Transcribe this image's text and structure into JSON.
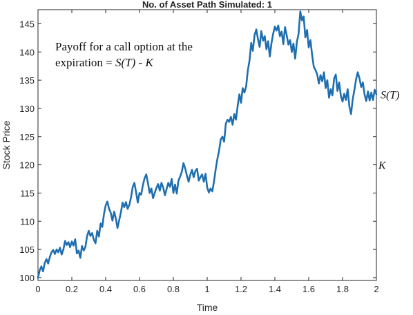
{
  "chart_data": {
    "type": "line",
    "title": "No. of Asset Path Simulated: 1",
    "xlabel": "Time",
    "ylabel": "Stock Price",
    "xlim": [
      0,
      2
    ],
    "ylim": [
      99.5,
      147.5
    ],
    "xticks": [
      "0",
      "0.2",
      "0.4",
      "0.6",
      "0.8",
      "1",
      "1.2",
      "1.4",
      "1.6",
      "1.8",
      "2"
    ],
    "yticks": [
      "100",
      "105",
      "110",
      "115",
      "120",
      "125",
      "130",
      "135",
      "140",
      "145"
    ],
    "grid": false,
    "line_color": "#1f6fb0",
    "annotation_line1": "Payoff for a call option at the",
    "annotation_line2_prefix": "expiration = ",
    "annotation_line2_formula": "S(T) - K",
    "right_labels": {
      "ST": "S(T)",
      "K": "K"
    },
    "path": [
      [
        0.0,
        100.0
      ],
      [
        0.01,
        101.3
      ],
      [
        0.02,
        102.0
      ],
      [
        0.03,
        101.1
      ],
      [
        0.04,
        102.6
      ],
      [
        0.05,
        103.3
      ],
      [
        0.06,
        102.5
      ],
      [
        0.07,
        103.7
      ],
      [
        0.08,
        104.5
      ],
      [
        0.09,
        104.9
      ],
      [
        0.1,
        104.2
      ],
      [
        0.11,
        105.0
      ],
      [
        0.12,
        104.5
      ],
      [
        0.13,
        105.3
      ],
      [
        0.14,
        104.1
      ],
      [
        0.15,
        105.0
      ],
      [
        0.16,
        106.5
      ],
      [
        0.17,
        105.8
      ],
      [
        0.18,
        106.3
      ],
      [
        0.19,
        105.4
      ],
      [
        0.2,
        106.4
      ],
      [
        0.21,
        105.7
      ],
      [
        0.22,
        106.8
      ],
      [
        0.23,
        104.3
      ],
      [
        0.24,
        104.8
      ],
      [
        0.25,
        103.5
      ],
      [
        0.26,
        105.6
      ],
      [
        0.27,
        104.8
      ],
      [
        0.28,
        105.4
      ],
      [
        0.29,
        107.3
      ],
      [
        0.3,
        108.3
      ],
      [
        0.31,
        107.4
      ],
      [
        0.32,
        107.9
      ],
      [
        0.33,
        106.7
      ],
      [
        0.34,
        106.1
      ],
      [
        0.35,
        108.3
      ],
      [
        0.36,
        107.3
      ],
      [
        0.37,
        109.6
      ],
      [
        0.38,
        109.0
      ],
      [
        0.39,
        111.3
      ],
      [
        0.4,
        112.8
      ],
      [
        0.41,
        113.5
      ],
      [
        0.42,
        112.2
      ],
      [
        0.43,
        111.5
      ],
      [
        0.44,
        110.1
      ],
      [
        0.45,
        111.7
      ],
      [
        0.46,
        110.5
      ],
      [
        0.47,
        108.8
      ],
      [
        0.48,
        110.2
      ],
      [
        0.49,
        111.6
      ],
      [
        0.5,
        113.3
      ],
      [
        0.51,
        112.5
      ],
      [
        0.52,
        113.4
      ],
      [
        0.53,
        112.2
      ],
      [
        0.54,
        112.9
      ],
      [
        0.55,
        114.3
      ],
      [
        0.56,
        116.1
      ],
      [
        0.57,
        116.8
      ],
      [
        0.58,
        115.1
      ],
      [
        0.59,
        113.3
      ],
      [
        0.6,
        115.0
      ],
      [
        0.61,
        114.7
      ],
      [
        0.62,
        116.4
      ],
      [
        0.63,
        117.6
      ],
      [
        0.64,
        118.3
      ],
      [
        0.65,
        116.7
      ],
      [
        0.66,
        115.0
      ],
      [
        0.67,
        115.8
      ],
      [
        0.68,
        114.1
      ],
      [
        0.69,
        115.0
      ],
      [
        0.7,
        115.9
      ],
      [
        0.71,
        116.6
      ],
      [
        0.72,
        115.4
      ],
      [
        0.73,
        116.8
      ],
      [
        0.74,
        116.0
      ],
      [
        0.75,
        114.6
      ],
      [
        0.76,
        115.7
      ],
      [
        0.77,
        116.8
      ],
      [
        0.78,
        116.1
      ],
      [
        0.79,
        117.5
      ],
      [
        0.8,
        115.0
      ],
      [
        0.81,
        116.5
      ],
      [
        0.82,
        114.9
      ],
      [
        0.83,
        117.2
      ],
      [
        0.84,
        117.9
      ],
      [
        0.85,
        118.8
      ],
      [
        0.86,
        120.3
      ],
      [
        0.87,
        119.4
      ],
      [
        0.88,
        118.1
      ],
      [
        0.89,
        117.0
      ],
      [
        0.9,
        118.2
      ],
      [
        0.91,
        119.1
      ],
      [
        0.92,
        117.8
      ],
      [
        0.93,
        118.9
      ],
      [
        0.94,
        119.3
      ],
      [
        0.95,
        117.2
      ],
      [
        0.96,
        117.8
      ],
      [
        0.97,
        118.3
      ],
      [
        0.98,
        117.0
      ],
      [
        0.99,
        118.4
      ],
      [
        1.0,
        116.0
      ],
      [
        1.01,
        115.1
      ],
      [
        1.02,
        115.8
      ],
      [
        1.03,
        115.3
      ],
      [
        1.04,
        117.0
      ],
      [
        1.05,
        119.2
      ],
      [
        1.06,
        121.0
      ],
      [
        1.07,
        122.5
      ],
      [
        1.08,
        124.5
      ],
      [
        1.09,
        125.0
      ],
      [
        1.1,
        124.1
      ],
      [
        1.11,
        127.3
      ],
      [
        1.12,
        128.0
      ],
      [
        1.13,
        127.6
      ],
      [
        1.14,
        128.5
      ],
      [
        1.15,
        127.1
      ],
      [
        1.16,
        129.0
      ],
      [
        1.17,
        128.0
      ],
      [
        1.18,
        130.4
      ],
      [
        1.19,
        132.5
      ],
      [
        1.2,
        131.0
      ],
      [
        1.21,
        133.6
      ],
      [
        1.22,
        132.8
      ],
      [
        1.23,
        133.9
      ],
      [
        1.24,
        136.7
      ],
      [
        1.25,
        138.5
      ],
      [
        1.26,
        141.6
      ],
      [
        1.27,
        140.2
      ],
      [
        1.28,
        143.0
      ],
      [
        1.29,
        144.0
      ],
      [
        1.3,
        142.3
      ],
      [
        1.31,
        140.9
      ],
      [
        1.32,
        143.7
      ],
      [
        1.33,
        142.0
      ],
      [
        1.34,
        142.8
      ],
      [
        1.35,
        140.5
      ],
      [
        1.36,
        141.9
      ],
      [
        1.37,
        139.2
      ],
      [
        1.38,
        141.6
      ],
      [
        1.39,
        143.2
      ],
      [
        1.4,
        144.5
      ],
      [
        1.41,
        143.8
      ],
      [
        1.42,
        144.7
      ],
      [
        1.43,
        142.8
      ],
      [
        1.44,
        143.6
      ],
      [
        1.45,
        141.4
      ],
      [
        1.46,
        144.4
      ],
      [
        1.47,
        143.0
      ],
      [
        1.48,
        141.3
      ],
      [
        1.49,
        142.1
      ],
      [
        1.5,
        140.0
      ],
      [
        1.51,
        141.5
      ],
      [
        1.52,
        138.8
      ],
      [
        1.53,
        141.8
      ],
      [
        1.54,
        143.2
      ],
      [
        1.55,
        147.2
      ],
      [
        1.56,
        145.6
      ],
      [
        1.57,
        146.3
      ],
      [
        1.58,
        142.6
      ],
      [
        1.59,
        143.9
      ],
      [
        1.6,
        140.8
      ],
      [
        1.61,
        142.1
      ],
      [
        1.62,
        139.5
      ],
      [
        1.63,
        137.4
      ],
      [
        1.64,
        136.8
      ],
      [
        1.65,
        136.0
      ],
      [
        1.66,
        134.4
      ],
      [
        1.67,
        135.9
      ],
      [
        1.68,
        134.8
      ],
      [
        1.69,
        136.4
      ],
      [
        1.7,
        133.6
      ],
      [
        1.71,
        135.0
      ],
      [
        1.72,
        131.9
      ],
      [
        1.73,
        133.4
      ],
      [
        1.74,
        132.3
      ],
      [
        1.75,
        135.3
      ],
      [
        1.76,
        136.0
      ],
      [
        1.77,
        133.1
      ],
      [
        1.78,
        134.6
      ],
      [
        1.79,
        132.2
      ],
      [
        1.8,
        131.2
      ],
      [
        1.81,
        132.6
      ],
      [
        1.82,
        131.5
      ],
      [
        1.83,
        133.4
      ],
      [
        1.84,
        130.4
      ],
      [
        1.85,
        129.0
      ],
      [
        1.86,
        131.6
      ],
      [
        1.87,
        133.3
      ],
      [
        1.88,
        135.2
      ],
      [
        1.89,
        136.4
      ],
      [
        1.9,
        135.3
      ],
      [
        1.91,
        133.8
      ],
      [
        1.92,
        134.6
      ],
      [
        1.93,
        132.5
      ],
      [
        1.94,
        131.3
      ],
      [
        1.95,
        133.0
      ],
      [
        1.96,
        131.4
      ],
      [
        1.97,
        132.8
      ],
      [
        1.98,
        131.5
      ],
      [
        1.99,
        133.3
      ],
      [
        2.0,
        132.5
      ]
    ]
  }
}
